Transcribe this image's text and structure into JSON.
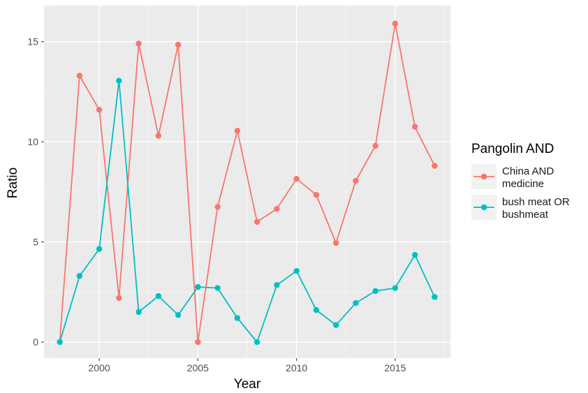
{
  "chart_data": {
    "type": "line",
    "title": "",
    "xlabel": "Year",
    "ylabel": "Ratio",
    "xlim": [
      1997.2,
      2017.8
    ],
    "ylim": [
      -0.8,
      16.8
    ],
    "x_ticks": [
      2000,
      2005,
      2010,
      2015
    ],
    "y_ticks": [
      0,
      5,
      10,
      15
    ],
    "grid": true,
    "legend_title": "Pangolin AND",
    "legend_position": "right",
    "series": [
      {
        "name": "China AND medicine",
        "label_lines": [
          "China AND",
          "medicine"
        ],
        "color": "#F8766D",
        "x": [
          1998,
          1999,
          2000,
          2001,
          2002,
          2003,
          2004,
          2005,
          2006,
          2007,
          2008,
          2009,
          2010,
          2011,
          2012,
          2013,
          2014,
          2015,
          2016,
          2017
        ],
        "values": [
          0,
          13.3,
          11.6,
          2.2,
          14.9,
          10.3,
          14.85,
          0,
          6.75,
          10.55,
          6.0,
          6.65,
          8.15,
          7.35,
          4.95,
          8.05,
          9.8,
          15.9,
          10.75,
          8.8
        ]
      },
      {
        "name": "bush meat OR bushmeat",
        "label_lines": [
          "bush meat OR",
          "bushmeat"
        ],
        "color": "#00BFC4",
        "x": [
          1998,
          1999,
          2000,
          2001,
          2002,
          2003,
          2004,
          2005,
          2006,
          2007,
          2008,
          2009,
          2010,
          2011,
          2012,
          2013,
          2014,
          2015,
          2016,
          2017
        ],
        "values": [
          0,
          3.3,
          4.65,
          13.05,
          1.5,
          2.3,
          1.35,
          2.75,
          2.7,
          1.2,
          0,
          2.85,
          3.55,
          1.6,
          0.85,
          1.95,
          2.55,
          2.7,
          4.35,
          2.25
        ]
      }
    ]
  }
}
